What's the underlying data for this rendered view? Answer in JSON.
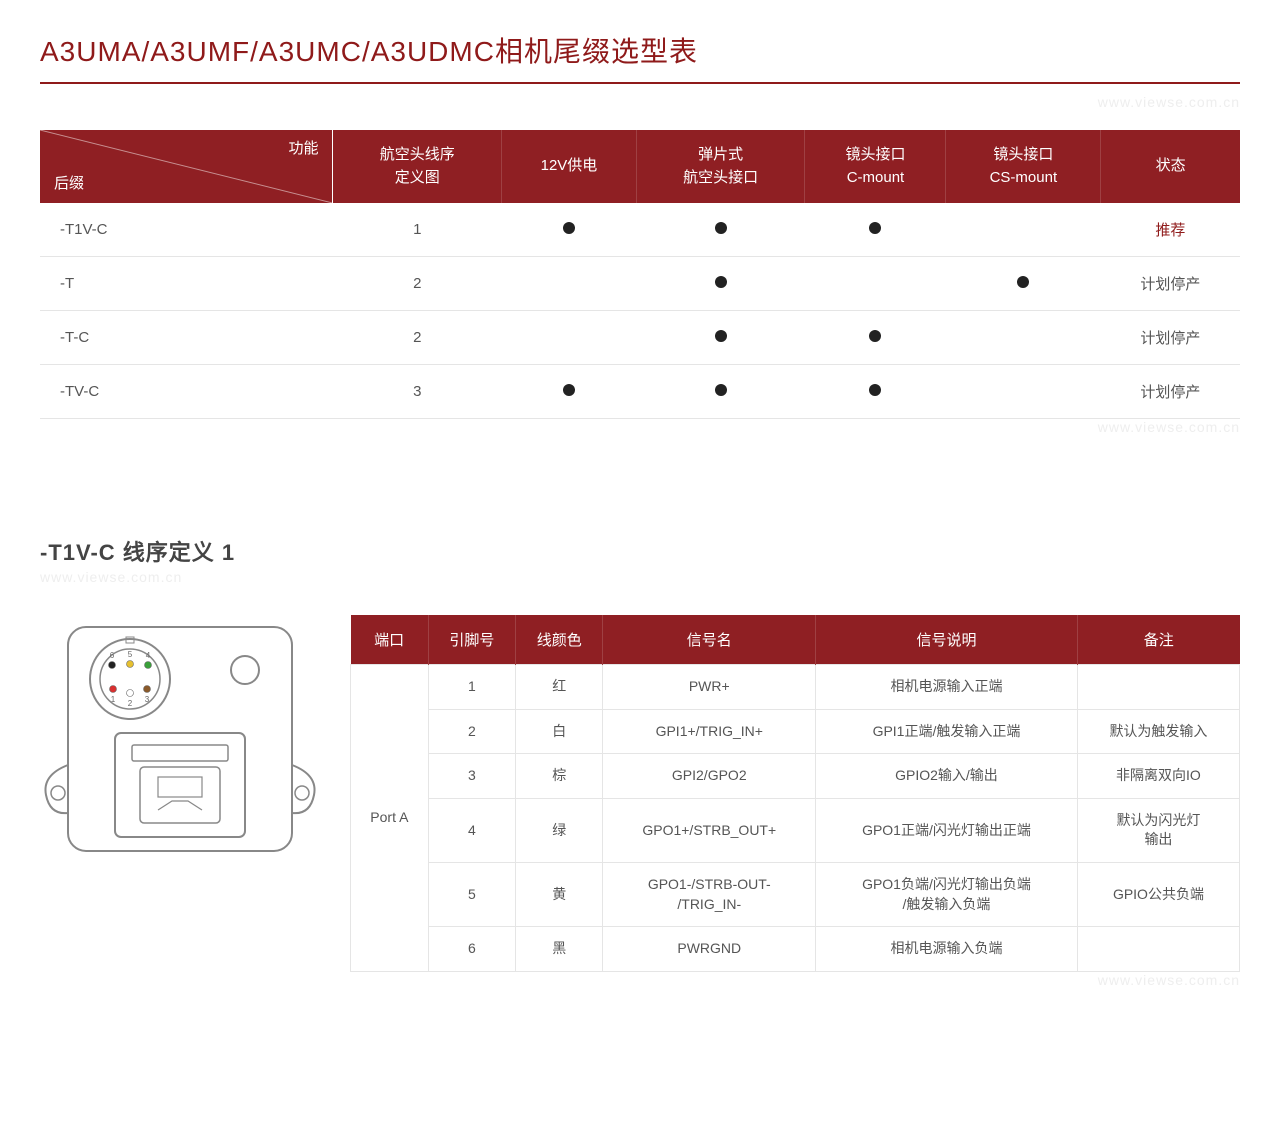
{
  "colors": {
    "brand": "#8f1a1a",
    "header_bg": "#8f1f23",
    "border": "#e5e5e5",
    "text": "#555555",
    "watermark": "#eeeeee"
  },
  "title": "A3UMA/A3UMF/A3UMC/A3UDMC相机尾缀选型表",
  "watermark": "www.viewse.com.cn",
  "table1": {
    "diag_top": "功能",
    "diag_bot": "后缀",
    "columns": [
      "航空头线序\n定义图",
      "12V供电",
      "弹片式\n航空头接口",
      "镜头接口\nC-mount",
      "镜头接口\nCS-mount",
      "状态"
    ],
    "rows": [
      {
        "suffix": "-T1V-C",
        "def": "1",
        "v12": true,
        "spring": true,
        "cmount": true,
        "csmount": false,
        "status": "推荐",
        "rec": true
      },
      {
        "suffix": "-T",
        "def": "2",
        "v12": false,
        "spring": true,
        "cmount": false,
        "csmount": true,
        "status": "计划停产",
        "rec": false
      },
      {
        "suffix": "-T-C",
        "def": "2",
        "v12": false,
        "spring": true,
        "cmount": true,
        "csmount": false,
        "status": "计划停产",
        "rec": false
      },
      {
        "suffix": "-TV-C",
        "def": "3",
        "v12": true,
        "spring": true,
        "cmount": true,
        "csmount": false,
        "status": "计划停产",
        "rec": false
      }
    ]
  },
  "subtitle": "-T1V-C 线序定义 1",
  "table2": {
    "columns": [
      "端口",
      "引脚号",
      "线颜色",
      "信号名",
      "信号说明",
      "备注"
    ],
    "port": "Port A",
    "rows": [
      {
        "pin": "1",
        "color": "红",
        "signal": "PWR+",
        "desc": "相机电源输入正端",
        "note": ""
      },
      {
        "pin": "2",
        "color": "白",
        "signal": "GPI1+/TRIG_IN+",
        "desc": "GPI1正端/触发输入正端",
        "note": "默认为触发输入"
      },
      {
        "pin": "3",
        "color": "棕",
        "signal": "GPI2/GPO2",
        "desc": "GPIO2输入/输出",
        "note": "非隔离双向IO"
      },
      {
        "pin": "4",
        "color": "绿",
        "signal": "GPO1+/STRB_OUT+",
        "desc": "GPO1正端/闪光灯输出正端",
        "note": "默认为闪光灯\n输出"
      },
      {
        "pin": "5",
        "color": "黄",
        "signal": "GPO1-/STRB-OUT-\n/TRIG_IN-",
        "desc": "GPO1负端/闪光灯输出负端\n/触发输入负端",
        "note": "GPIO公共负端"
      },
      {
        "pin": "6",
        "color": "黑",
        "signal": "PWRGND",
        "desc": "相机电源输入负端",
        "note": ""
      }
    ]
  },
  "connector": {
    "pin_labels": [
      "1",
      "2",
      "3",
      "4",
      "5",
      "6"
    ],
    "pin_colors": [
      "#d93030",
      "#ffffff",
      "#8a5a2a",
      "#3aa03a",
      "#e6c030",
      "#222222"
    ]
  }
}
